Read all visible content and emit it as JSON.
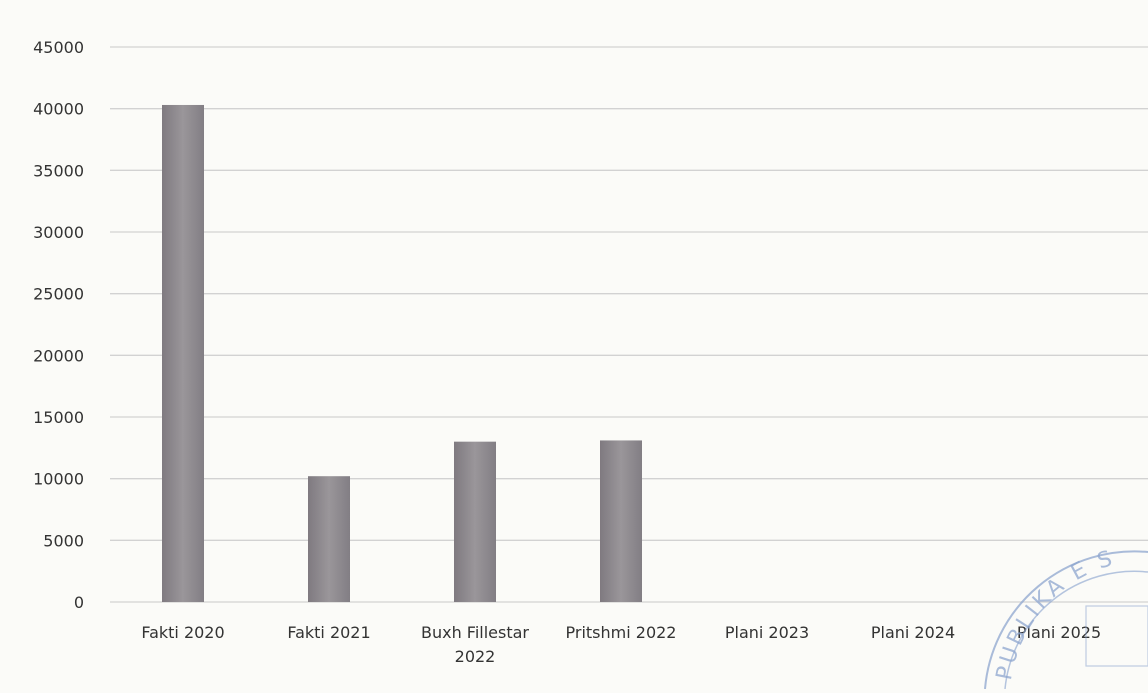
{
  "chart_data": {
    "type": "bar",
    "categories": [
      [
        "Fakti 2020"
      ],
      [
        "Fakti 2021"
      ],
      [
        "Buxh Fillestar",
        "2022"
      ],
      [
        "Pritshmi 2022"
      ],
      [
        "Plani 2023"
      ],
      [
        "Plani 2024"
      ],
      [
        "Plani 2025"
      ]
    ],
    "values": [
      40300,
      10200,
      13000,
      13100,
      0,
      0,
      0
    ],
    "ylim": [
      0,
      45000
    ],
    "yticks": [
      "0",
      "5000",
      "10000",
      "15000",
      "20000",
      "25000",
      "30000",
      "35000",
      "40000",
      "45000"
    ],
    "grid": true,
    "legend": "none",
    "title": "",
    "xlabel": "",
    "ylabel": "",
    "bar_color": "#8e8a8e",
    "grid_color": "#d2d2d2",
    "text_color": "#333333",
    "stamp_color": "#8ea6cf",
    "stamp_text": "PUBLIKA E S"
  }
}
